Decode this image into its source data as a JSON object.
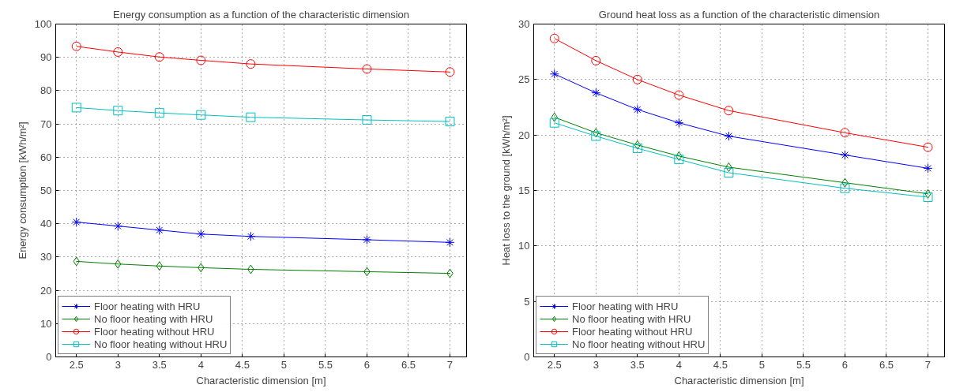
{
  "chart_data": [
    {
      "type": "line",
      "title": "Energy consumption as a function of the characteristic dimension",
      "xlabel": "Characteristic dimension [m]",
      "ylabel": "Energy consumption [kWh/m²]",
      "x": [
        2.5,
        3,
        3.5,
        4,
        4.6,
        6,
        7
      ],
      "xlim": [
        2.25,
        7.2
      ],
      "xticks": [
        2.5,
        3,
        3.5,
        4,
        4.5,
        5,
        5.5,
        6,
        6.5,
        7
      ],
      "ylim": [
        0,
        100
      ],
      "yticks": [
        0,
        10,
        20,
        30,
        40,
        50,
        60,
        70,
        80,
        90,
        100
      ],
      "grid": true,
      "legend": "bottom left",
      "line_style": "solid",
      "series": [
        {
          "name": "Floor heating with HRU",
          "color": "#0000ff",
          "marker": "cross",
          "values": [
            40.5,
            39.3,
            38.1,
            36.9,
            36.2,
            35.2,
            34.4
          ]
        },
        {
          "name": "No floor heating with HRU",
          "color": "#008000",
          "marker": "diamond",
          "values": [
            28.7,
            27.9,
            27.3,
            26.8,
            26.3,
            25.6,
            25.1
          ]
        },
        {
          "name": "Floor heating without HRU",
          "color": "#ff0000",
          "marker": "circle",
          "values": [
            93.3,
            91.6,
            90.1,
            89.1,
            88.0,
            86.5,
            85.6
          ]
        },
        {
          "name": "No floor heating without HRU",
          "color": "#00bfbf",
          "marker": "square",
          "values": [
            74.9,
            74.0,
            73.3,
            72.7,
            72.0,
            71.2,
            70.7
          ]
        }
      ]
    },
    {
      "type": "line",
      "title": "Ground heat loss as a function of the characteristic dimension",
      "xlabel": "Characteristic dimension [m]",
      "ylabel": "Heat loss to the ground [kWh/m²]",
      "x": [
        2.5,
        3,
        3.5,
        4,
        4.6,
        6,
        7
      ],
      "xlim": [
        2.25,
        7.2
      ],
      "xticks": [
        2.5,
        3,
        3.5,
        4,
        4.5,
        5,
        5.5,
        6,
        6.5,
        7
      ],
      "ylim": [
        0,
        30
      ],
      "yticks": [
        0,
        5,
        10,
        15,
        20,
        25,
        30
      ],
      "grid": true,
      "legend": "bottom left",
      "line_style": "solid",
      "series": [
        {
          "name": "Floor heating with HRU",
          "color": "#0000ff",
          "marker": "cross",
          "values": [
            25.5,
            23.8,
            22.3,
            21.1,
            19.9,
            18.2,
            17.0
          ]
        },
        {
          "name": "No floor heating with HRU",
          "color": "#008000",
          "marker": "diamond",
          "values": [
            21.6,
            20.2,
            19.1,
            18.1,
            17.1,
            15.7,
            14.7
          ]
        },
        {
          "name": "Floor heating without HRU",
          "color": "#ff0000",
          "marker": "circle",
          "values": [
            28.7,
            26.7,
            25.0,
            23.6,
            22.2,
            20.2,
            18.9
          ]
        },
        {
          "name": "No floor heating without HRU",
          "color": "#00bfbf",
          "marker": "square",
          "values": [
            21.1,
            19.9,
            18.8,
            17.8,
            16.6,
            15.2,
            14.4
          ]
        }
      ]
    }
  ]
}
